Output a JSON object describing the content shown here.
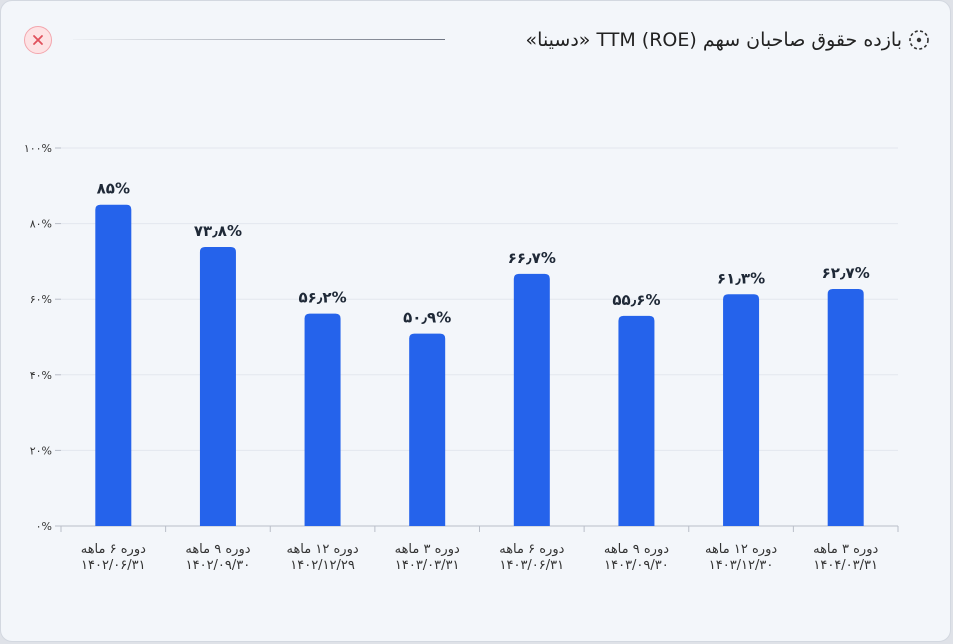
{
  "header": {
    "title": "بازده حقوق صاحبان سهم TTM (ROE) «دسینا»",
    "close_icon": "close-icon",
    "title_icon": "dashed-circle-icon"
  },
  "colors": {
    "bar": "#2563eb",
    "grid": "#e3e7ee",
    "axis": "#b9bec8"
  },
  "chart_data": {
    "type": "bar",
    "categories": [
      [
        "دوره ۶ ماهه",
        "۱۴۰۲/۰۶/۳۱"
      ],
      [
        "دوره ۹ ماهه",
        "۱۴۰۲/۰۹/۳۰"
      ],
      [
        "دوره ۱۲ ماهه",
        "۱۴۰۲/۱۲/۲۹"
      ],
      [
        "دوره ۳ ماهه",
        "۱۴۰۳/۰۳/۳۱"
      ],
      [
        "دوره ۶ ماهه",
        "۱۴۰۳/۰۶/۳۱"
      ],
      [
        "دوره ۹ ماهه",
        "۱۴۰۳/۰۹/۳۰"
      ],
      [
        "دوره ۱۲ ماهه",
        "۱۴۰۳/۱۲/۳۰"
      ],
      [
        "دوره ۳ ماهه",
        "۱۴۰۴/۰۳/۳۱"
      ]
    ],
    "values": [
      85,
      73.8,
      56.2,
      50.9,
      66.7,
      55.6,
      61.3,
      62.7
    ],
    "value_labels": [
      "۸۵%",
      "۷۳٫۸%",
      "۵۶٫۲%",
      "۵۰٫۹%",
      "۶۶٫۷%",
      "۵۵٫۶%",
      "۶۱٫۳%",
      "۶۲٫۷%"
    ],
    "y_ticks": [
      0,
      20,
      40,
      60,
      80,
      100
    ],
    "y_tick_labels": [
      "۰%",
      "۲۰%",
      "۴۰%",
      "۶۰%",
      "۸۰%",
      "۱۰۰%"
    ],
    "ylim": [
      0,
      100
    ],
    "grid": true,
    "legend": "none"
  }
}
